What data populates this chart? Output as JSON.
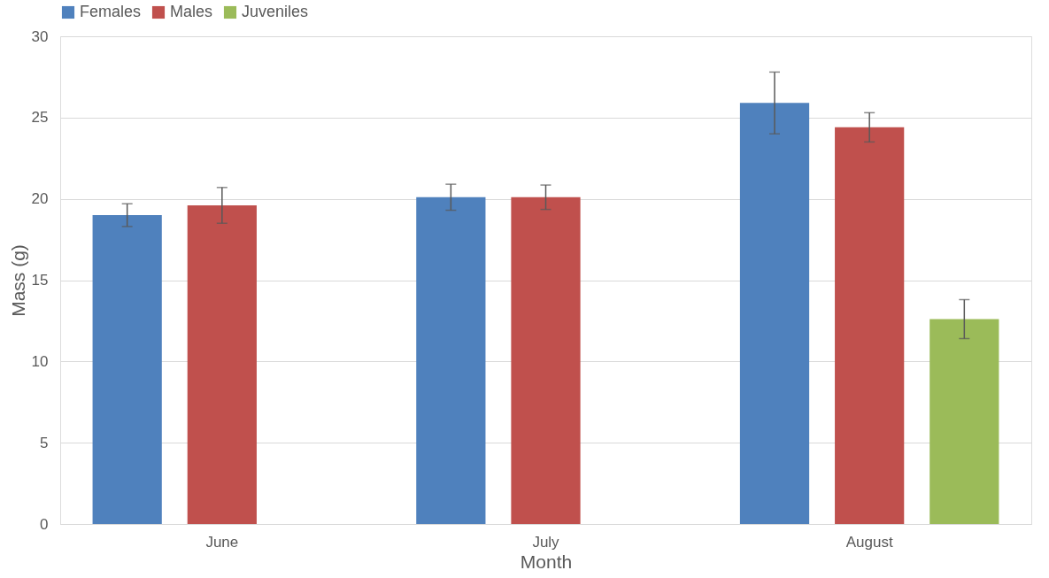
{
  "chart_data": {
    "type": "bar",
    "xlabel": "Month",
    "ylabel": "Mass (g)",
    "categories": [
      "June",
      "July",
      "August"
    ],
    "series": [
      {
        "name": "Females",
        "color": "#4f81bd",
        "values": [
          19.0,
          20.1,
          25.9
        ],
        "errors": [
          0.7,
          0.8,
          1.9
        ]
      },
      {
        "name": "Males",
        "color": "#c0504d",
        "values": [
          19.6,
          20.1,
          24.4
        ],
        "errors": [
          1.1,
          0.75,
          0.9
        ]
      },
      {
        "name": "Juveniles",
        "color": "#9bbb59",
        "values": [
          null,
          null,
          12.6
        ],
        "errors": [
          null,
          null,
          1.2
        ]
      }
    ],
    "ylim": [
      0,
      30
    ],
    "yticks": [
      0,
      5,
      10,
      15,
      20,
      25,
      30
    ],
    "grid": "y",
    "legend": "top"
  }
}
